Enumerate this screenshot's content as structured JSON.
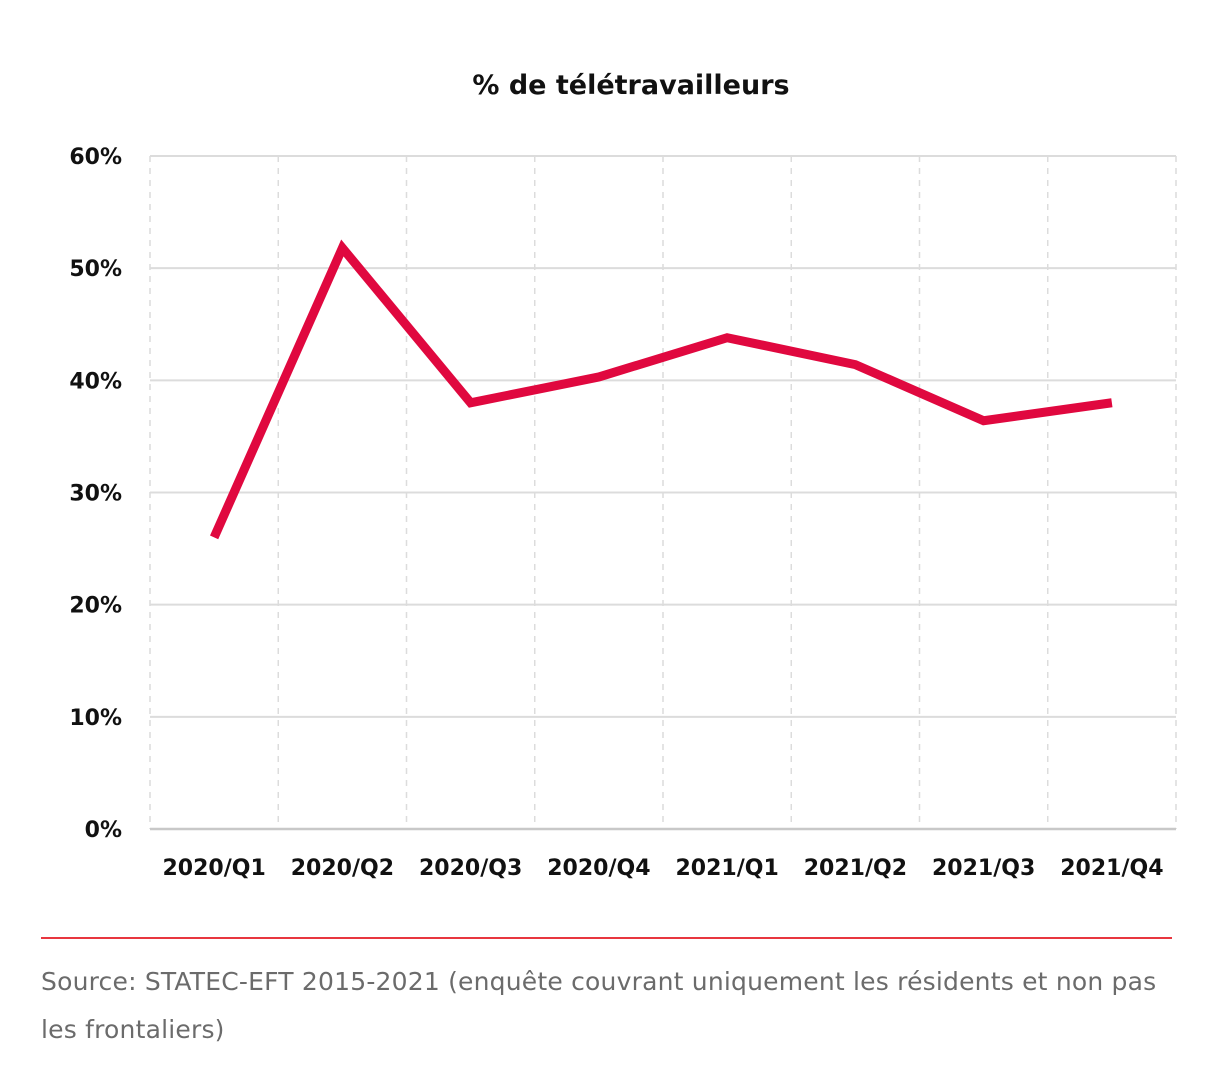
{
  "chart_data": {
    "type": "line",
    "title": "% de télétravailleurs",
    "categories": [
      "2020/Q1",
      "2020/Q2",
      "2020/Q3",
      "2020/Q4",
      "2021/Q1",
      "2021/Q2",
      "2021/Q3",
      "2021/Q4"
    ],
    "series": [
      {
        "values": [
          26,
          51.8,
          38,
          40.3,
          43.8,
          41.4,
          36.4,
          38
        ],
        "color": "#e0083f"
      }
    ],
    "ylim": [
      0,
      60
    ],
    "yticks": [
      0,
      10,
      20,
      30,
      40,
      50,
      60
    ],
    "ytick_labels": [
      "0%",
      "10%",
      "20%",
      "30%",
      "40%",
      "50%",
      "60%"
    ],
    "grid": true,
    "legend": "none"
  },
  "source": "Source: STATEC-EFT 2015-2021 (enquête couvrant uniquement les résidents et non pas les frontaliers)",
  "colors": {
    "line": "#e0083f",
    "rule": "#e8363f",
    "grid": "#dcdcdc",
    "source_text": "#6b6b6b"
  }
}
